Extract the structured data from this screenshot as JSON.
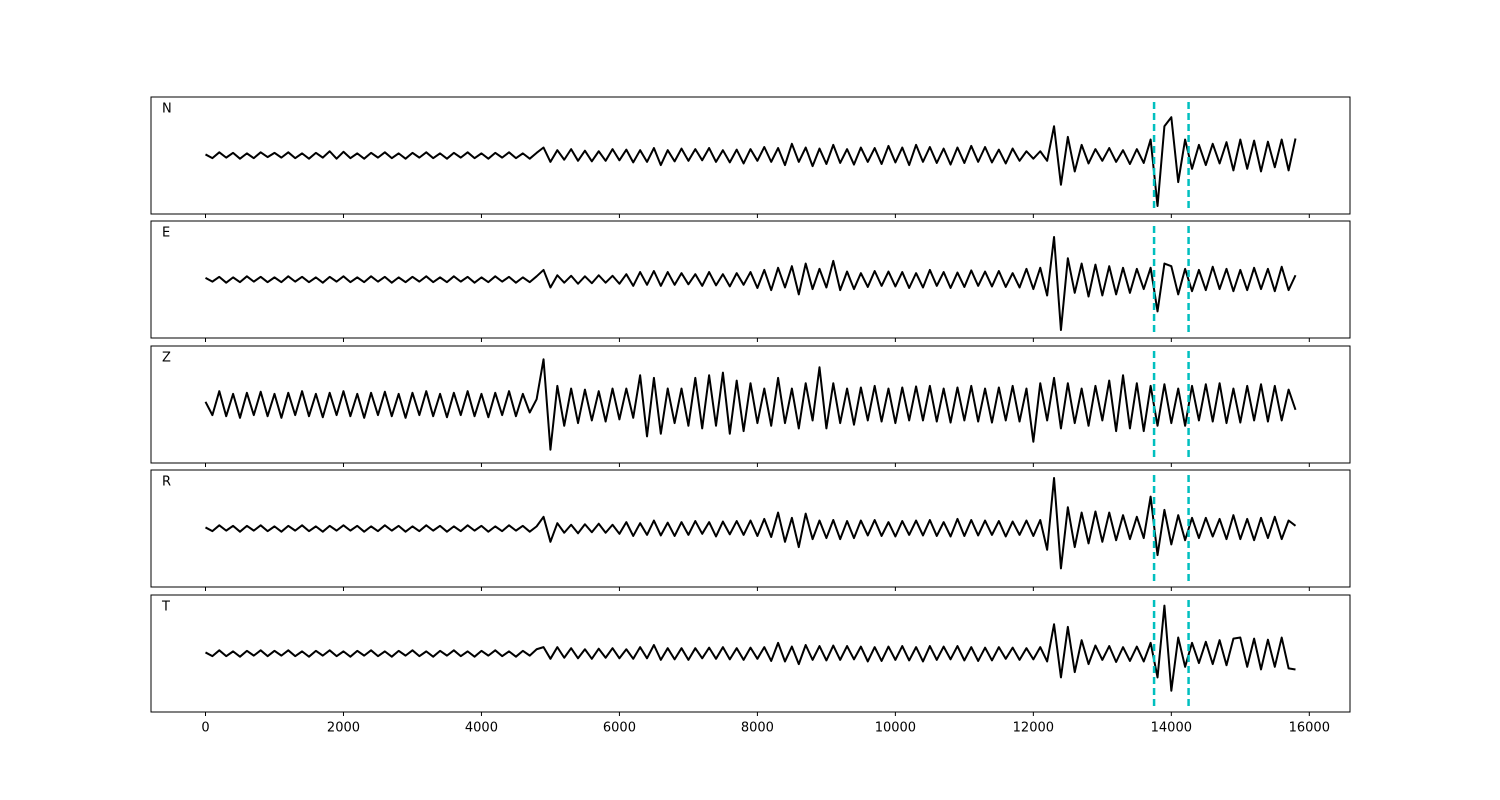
{
  "chart_data": {
    "type": "line",
    "x": [
      0,
      100,
      200,
      300,
      400,
      500,
      600,
      700,
      800,
      900,
      1000,
      1100,
      1200,
      1300,
      1400,
      1500,
      1600,
      1700,
      1800,
      1900,
      2000,
      2100,
      2200,
      2300,
      2400,
      2500,
      2600,
      2700,
      2800,
      2900,
      3000,
      3100,
      3200,
      3300,
      3400,
      3500,
      3600,
      3700,
      3800,
      3900,
      4000,
      4100,
      4200,
      4300,
      4400,
      4500,
      4600,
      4700,
      4800,
      4900,
      5000,
      5100,
      5200,
      5300,
      5400,
      5500,
      5600,
      5700,
      5800,
      5900,
      6000,
      6100,
      6200,
      6300,
      6400,
      6500,
      6600,
      6700,
      6800,
      6900,
      7000,
      7100,
      7200,
      7300,
      7400,
      7500,
      7600,
      7700,
      7800,
      7900,
      8000,
      8100,
      8200,
      8300,
      8400,
      8500,
      8600,
      8700,
      8800,
      8900,
      9000,
      9100,
      9200,
      9300,
      9400,
      9500,
      9600,
      9700,
      9800,
      9900,
      10000,
      10100,
      10200,
      10300,
      10400,
      10500,
      10600,
      10700,
      10800,
      10900,
      11000,
      11100,
      11200,
      11300,
      11400,
      11500,
      11600,
      11700,
      11800,
      11900,
      12000,
      12100,
      12200,
      12300,
      12400,
      12500,
      12600,
      12700,
      12800,
      12900,
      13000,
      13100,
      13200,
      13300,
      13400,
      13500,
      13600,
      13700,
      13800,
      13900,
      14000,
      14100,
      14200,
      14300,
      14400,
      14500,
      14600,
      14700,
      14800,
      14900,
      15000,
      15100,
      15200,
      15300,
      15400,
      15500,
      15600,
      15700,
      15800
    ],
    "series": [
      {
        "name": "N",
        "color": "#000000",
        "values": [
          0.02,
          -0.05,
          0.06,
          -0.04,
          0.05,
          -0.06,
          0.04,
          -0.05,
          0.06,
          -0.03,
          0.05,
          -0.04,
          0.06,
          -0.05,
          0.04,
          -0.06,
          0.05,
          -0.04,
          0.08,
          -0.06,
          0.07,
          -0.05,
          0.04,
          -0.06,
          0.05,
          -0.04,
          0.06,
          -0.05,
          0.04,
          -0.06,
          0.05,
          -0.04,
          0.06,
          -0.05,
          0.04,
          -0.06,
          0.05,
          -0.04,
          0.06,
          -0.05,
          0.04,
          -0.06,
          0.05,
          -0.04,
          0.06,
          -0.05,
          0.04,
          -0.06,
          0.05,
          0.15,
          -0.12,
          0.1,
          -0.08,
          0.12,
          -0.1,
          0.09,
          -0.11,
          0.08,
          -0.1,
          0.12,
          -0.09,
          0.11,
          -0.13,
          0.1,
          -0.12,
          0.14,
          -0.18,
          0.1,
          -0.11,
          0.13,
          -0.1,
          0.12,
          -0.09,
          0.14,
          -0.12,
          0.1,
          -0.13,
          0.11,
          -0.15,
          0.12,
          -0.1,
          0.16,
          -0.12,
          0.14,
          -0.18,
          0.22,
          -0.12,
          0.15,
          -0.2,
          0.13,
          -0.16,
          0.2,
          -0.14,
          0.12,
          -0.17,
          0.15,
          -0.12,
          0.14,
          -0.16,
          0.18,
          -0.13,
          0.15,
          -0.18,
          0.2,
          -0.12,
          0.16,
          -0.14,
          0.13,
          -0.17,
          0.15,
          -0.14,
          0.18,
          -0.12,
          0.16,
          -0.13,
          0.11,
          -0.15,
          0.13,
          -0.1,
          0.08,
          -0.06,
          0.08,
          -0.1,
          0.55,
          -0.55,
          0.35,
          -0.3,
          0.2,
          -0.15,
          0.12,
          -0.1,
          0.14,
          -0.12,
          0.1,
          -0.16,
          0.12,
          -0.14,
          0.3,
          -0.95,
          0.55,
          0.72,
          -0.5,
          0.3,
          -0.25,
          0.2,
          -0.18,
          0.22,
          -0.15,
          0.25,
          -0.28,
          0.3,
          -0.25,
          0.28,
          -0.3,
          0.26,
          -0.22,
          0.3,
          -0.28,
          0.32
        ]
      },
      {
        "name": "E",
        "color": "#000000",
        "values": [
          0.03,
          -0.04,
          0.05,
          -0.06,
          0.04,
          -0.05,
          0.06,
          -0.04,
          0.05,
          -0.05,
          0.04,
          -0.05,
          0.06,
          -0.04,
          0.05,
          -0.05,
          0.04,
          -0.06,
          0.05,
          -0.04,
          0.06,
          -0.05,
          0.04,
          -0.05,
          0.06,
          -0.04,
          0.05,
          -0.06,
          0.04,
          -0.05,
          0.05,
          -0.04,
          0.06,
          -0.05,
          0.04,
          -0.05,
          0.06,
          -0.04,
          0.05,
          -0.06,
          0.04,
          -0.05,
          0.06,
          -0.04,
          0.05,
          -0.06,
          0.04,
          -0.05,
          0.06,
          0.18,
          -0.15,
          0.08,
          -0.06,
          0.07,
          -0.08,
          0.06,
          -0.07,
          0.08,
          -0.06,
          0.07,
          -0.08,
          0.1,
          -0.12,
          0.14,
          -0.1,
          0.16,
          -0.12,
          0.14,
          -0.1,
          0.12,
          -0.09,
          0.1,
          -0.12,
          0.14,
          -0.11,
          0.1,
          -0.13,
          0.12,
          -0.1,
          0.14,
          -0.16,
          0.18,
          -0.2,
          0.22,
          -0.15,
          0.25,
          -0.28,
          0.3,
          -0.18,
          0.2,
          -0.15,
          0.35,
          -0.2,
          0.15,
          -0.18,
          0.12,
          -0.14,
          0.16,
          -0.12,
          0.15,
          -0.13,
          0.14,
          -0.16,
          0.12,
          -0.15,
          0.18,
          -0.12,
          0.14,
          -0.16,
          0.13,
          -0.14,
          0.17,
          -0.12,
          0.15,
          -0.13,
          0.16,
          -0.14,
          0.12,
          -0.15,
          0.2,
          -0.18,
          0.22,
          -0.3,
          0.8,
          -0.95,
          0.4,
          -0.25,
          0.3,
          -0.32,
          0.28,
          -0.3,
          0.25,
          -0.28,
          0.22,
          -0.25,
          0.2,
          -0.18,
          0.22,
          -0.6,
          0.3,
          0.25,
          -0.28,
          0.2,
          -0.22,
          0.18,
          -0.2,
          0.24,
          -0.18,
          0.2,
          -0.22,
          0.18,
          -0.2,
          0.22,
          -0.18,
          0.2,
          -0.22,
          0.24,
          -0.2,
          0.08
        ]
      },
      {
        "name": "Z",
        "color": "#000000",
        "values": [
          0.05,
          -0.2,
          0.25,
          -0.22,
          0.2,
          -0.25,
          0.22,
          -0.2,
          0.24,
          -0.22,
          0.2,
          -0.25,
          0.22,
          -0.2,
          0.25,
          -0.22,
          0.2,
          -0.24,
          0.22,
          -0.2,
          0.25,
          -0.22,
          0.2,
          -0.25,
          0.22,
          -0.2,
          0.24,
          -0.22,
          0.2,
          -0.25,
          0.22,
          -0.2,
          0.25,
          -0.22,
          0.2,
          -0.24,
          0.22,
          -0.2,
          0.25,
          -0.22,
          0.2,
          -0.24,
          0.22,
          -0.2,
          0.25,
          -0.22,
          0.2,
          -0.15,
          0.1,
          0.85,
          -0.85,
          0.35,
          -0.4,
          0.3,
          -0.35,
          0.28,
          -0.3,
          0.25,
          -0.32,
          0.3,
          -0.28,
          0.3,
          -0.25,
          0.55,
          -0.6,
          0.5,
          -0.55,
          0.3,
          -0.35,
          0.3,
          -0.4,
          0.5,
          -0.45,
          0.55,
          -0.4,
          0.6,
          -0.55,
          0.45,
          -0.5,
          0.4,
          -0.35,
          0.3,
          -0.4,
          0.5,
          -0.35,
          0.3,
          -0.45,
          0.4,
          -0.3,
          0.7,
          -0.45,
          0.4,
          -0.35,
          0.3,
          -0.38,
          0.32,
          -0.3,
          0.35,
          -0.32,
          0.3,
          -0.35,
          0.32,
          -0.3,
          0.34,
          -0.3,
          0.35,
          -0.32,
          0.3,
          -0.34,
          0.32,
          -0.3,
          0.35,
          -0.32,
          0.3,
          -0.34,
          0.32,
          -0.3,
          0.35,
          -0.32,
          0.3,
          -0.7,
          0.4,
          -0.3,
          0.5,
          -0.45,
          0.4,
          -0.35,
          0.3,
          -0.4,
          0.35,
          -0.3,
          0.45,
          -0.5,
          0.55,
          -0.45,
          0.4,
          -0.5,
          0.35,
          -0.4,
          0.38,
          -0.35,
          0.3,
          -0.4,
          0.35,
          -0.3,
          0.38,
          -0.32,
          0.4,
          -0.35,
          0.3,
          -0.34,
          0.35,
          -0.3,
          0.38,
          -0.32,
          0.35,
          -0.3,
          0.28,
          -0.1
        ]
      },
      {
        "name": "R",
        "color": "#000000",
        "values": [
          0.02,
          -0.05,
          0.06,
          -0.04,
          0.05,
          -0.06,
          0.05,
          -0.04,
          0.06,
          -0.05,
          0.04,
          -0.06,
          0.05,
          -0.04,
          0.06,
          -0.05,
          0.04,
          -0.06,
          0.05,
          -0.04,
          0.06,
          -0.04,
          0.05,
          -0.06,
          0.04,
          -0.05,
          0.06,
          -0.04,
          0.05,
          -0.06,
          0.04,
          -0.05,
          0.06,
          -0.04,
          0.05,
          -0.06,
          0.04,
          -0.05,
          0.06,
          -0.04,
          0.05,
          -0.06,
          0.04,
          -0.05,
          0.06,
          -0.04,
          0.05,
          -0.06,
          0.04,
          0.22,
          -0.25,
          0.1,
          -0.08,
          0.07,
          -0.09,
          0.08,
          -0.07,
          0.09,
          -0.08,
          0.07,
          -0.1,
          0.12,
          -0.14,
          0.1,
          -0.12,
          0.15,
          -0.13,
          0.11,
          -0.14,
          0.12,
          -0.12,
          0.14,
          -0.1,
          0.12,
          -0.15,
          0.13,
          -0.11,
          0.14,
          -0.12,
          0.15,
          -0.14,
          0.18,
          -0.16,
          0.3,
          -0.25,
          0.2,
          -0.35,
          0.28,
          -0.2,
          0.15,
          -0.18,
          0.16,
          -0.2,
          0.14,
          -0.18,
          0.15,
          -0.13,
          0.16,
          -0.14,
          0.12,
          -0.15,
          0.14,
          -0.12,
          0.15,
          -0.13,
          0.16,
          -0.14,
          0.12,
          -0.15,
          0.18,
          -0.14,
          0.16,
          -0.13,
          0.15,
          -0.12,
          0.14,
          -0.15,
          0.13,
          -0.12,
          0.15,
          -0.14,
          0.16,
          -0.4,
          0.95,
          -0.75,
          0.4,
          -0.35,
          0.3,
          -0.28,
          0.32,
          -0.25,
          0.3,
          -0.22,
          0.25,
          -0.2,
          0.22,
          -0.18,
          0.6,
          -0.5,
          0.35,
          -0.3,
          0.25,
          -0.22,
          0.2,
          -0.18,
          0.2,
          -0.15,
          0.18,
          -0.2,
          0.25,
          -0.2,
          0.18,
          -0.22,
          0.2,
          -0.18,
          0.22,
          -0.2,
          0.15,
          0.05
        ]
      },
      {
        "name": "T",
        "color": "#000000",
        "values": [
          0.02,
          -0.05,
          0.06,
          -0.05,
          0.04,
          -0.06,
          0.05,
          -0.04,
          0.06,
          -0.05,
          0.05,
          -0.04,
          0.06,
          -0.05,
          0.04,
          -0.06,
          0.05,
          -0.04,
          0.06,
          -0.05,
          0.04,
          -0.06,
          0.05,
          -0.04,
          0.06,
          -0.05,
          0.04,
          -0.06,
          0.05,
          -0.04,
          0.06,
          -0.05,
          0.04,
          -0.06,
          0.05,
          -0.04,
          0.06,
          -0.05,
          0.04,
          -0.06,
          0.05,
          -0.04,
          0.06,
          -0.05,
          0.04,
          -0.06,
          0.05,
          -0.04,
          0.08,
          0.12,
          -0.1,
          0.12,
          -0.08,
          0.1,
          -0.09,
          0.08,
          -0.1,
          0.09,
          -0.08,
          0.1,
          -0.09,
          0.08,
          -0.1,
          0.12,
          -0.09,
          0.16,
          -0.12,
          0.1,
          -0.11,
          0.1,
          -0.12,
          0.1,
          -0.09,
          0.11,
          -0.1,
          0.12,
          -0.11,
          0.1,
          -0.12,
          0.11,
          -0.1,
          0.12,
          -0.14,
          0.2,
          -0.15,
          0.13,
          -0.2,
          0.16,
          -0.12,
          0.14,
          -0.13,
          0.15,
          -0.12,
          0.14,
          -0.11,
          0.13,
          -0.15,
          0.12,
          -0.14,
          0.13,
          -0.12,
          0.14,
          -0.13,
          0.12,
          -0.15,
          0.14,
          -0.12,
          0.13,
          -0.11,
          0.14,
          -0.13,
          0.12,
          -0.14,
          0.11,
          -0.13,
          0.12,
          -0.1,
          0.11,
          -0.12,
          0.1,
          -0.11,
          0.12,
          -0.15,
          0.55,
          -0.45,
          0.5,
          -0.35,
          0.25,
          -0.2,
          0.15,
          -0.12,
          0.14,
          -0.16,
          0.12,
          -0.14,
          0.13,
          -0.15,
          0.2,
          -0.45,
          0.9,
          -0.7,
          0.3,
          -0.25,
          0.2,
          -0.18,
          0.22,
          -0.2,
          0.25,
          -0.22,
          0.28,
          0.3,
          -0.25,
          0.28,
          -0.3,
          0.26,
          -0.25,
          0.3,
          -0.28,
          -0.3
        ]
      }
    ],
    "xlim": [
      -790,
      16590
    ],
    "xticks": [
      0,
      2000,
      4000,
      6000,
      8000,
      10000,
      12000,
      14000,
      16000
    ],
    "ylim": [
      -1.1,
      1.1
    ],
    "vlines": [
      13750,
      14250
    ],
    "vline_color": "#00bfbf"
  }
}
